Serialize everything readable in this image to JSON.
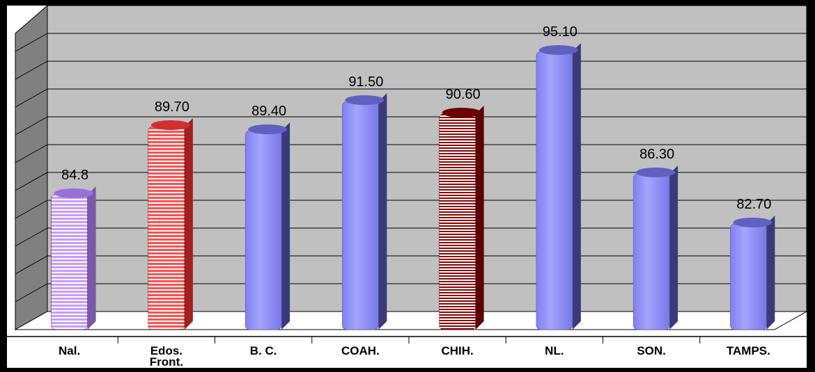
{
  "chart_data": {
    "type": "bar",
    "categories": [
      "Nal.",
      "Edos. Front.",
      "B. C.",
      "COAH.",
      "CHIH.",
      "NL.",
      "SON.",
      "TAMPS."
    ],
    "category_lines": [
      [
        "Nal."
      ],
      [
        "Edos.",
        "Front."
      ],
      [
        "B. C."
      ],
      [
        "COAH."
      ],
      [
        "CHIH."
      ],
      [
        "NL."
      ],
      [
        "SON."
      ],
      [
        "TAMPS."
      ]
    ],
    "values": [
      84.8,
      89.7,
      89.4,
      91.5,
      90.6,
      95.1,
      86.3,
      82.7
    ],
    "value_labels": [
      "84.8",
      "89.70",
      "89.40",
      "91.50",
      "90.60",
      "95.10",
      "86.30",
      "82.70"
    ],
    "bar_styles": [
      "striped-lavender",
      "striped-red",
      "solid-blue",
      "solid-blue",
      "striped-darkred",
      "solid-blue",
      "solid-blue",
      "solid-blue"
    ],
    "ylim": [
      75,
      97
    ],
    "grid": true,
    "colors": {
      "blue": "#9a9aff",
      "blue_dark": "#3a3a7a",
      "red": "#ff4a4a",
      "dark_red": "#8a0000",
      "lavender": "#c89cff",
      "wall": "#c0c0c0"
    }
  }
}
